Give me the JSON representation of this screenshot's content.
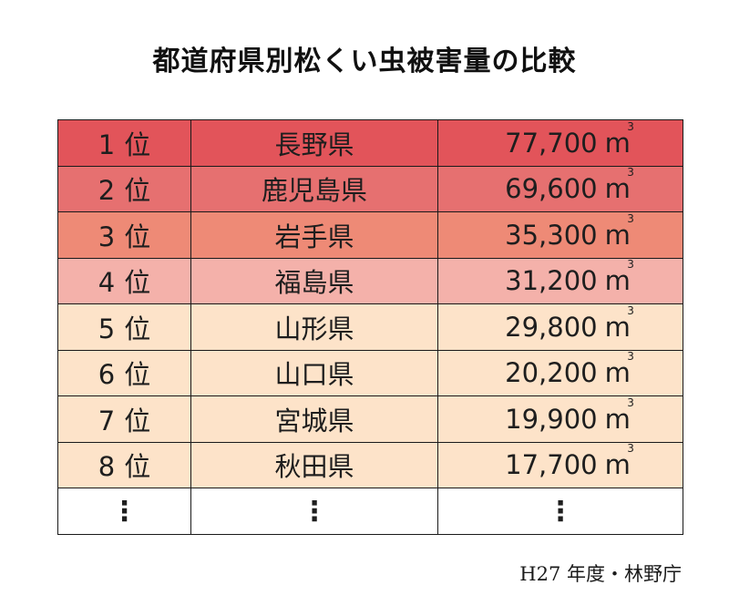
{
  "chart_data": {
    "type": "table",
    "title": "都道府県別松くい虫被害量の比較",
    "rows": [
      {
        "rank": "1",
        "rank_suffix": "位",
        "prefecture": "長野県",
        "volume": "77,700",
        "unit": "m",
        "unit_sup": "3",
        "color": "#e2545a"
      },
      {
        "rank": "2",
        "rank_suffix": "位",
        "prefecture": "鹿児島県",
        "volume": "69,600",
        "unit": "m",
        "unit_sup": "3",
        "color": "#e67070"
      },
      {
        "rank": "3",
        "rank_suffix": "位",
        "prefecture": "岩手県",
        "volume": "35,300",
        "unit": "m",
        "unit_sup": "3",
        "color": "#ee8a76"
      },
      {
        "rank": "4",
        "rank_suffix": "位",
        "prefecture": "福島県",
        "volume": "31,200",
        "unit": "m",
        "unit_sup": "3",
        "color": "#f4b1aa"
      },
      {
        "rank": "5",
        "rank_suffix": "位",
        "prefecture": "山形県",
        "volume": "29,800",
        "unit": "m",
        "unit_sup": "3",
        "color": "#fde3c9"
      },
      {
        "rank": "6",
        "rank_suffix": "位",
        "prefecture": "山口県",
        "volume": "20,200",
        "unit": "m",
        "unit_sup": "3",
        "color": "#fde3c9"
      },
      {
        "rank": "7",
        "rank_suffix": "位",
        "prefecture": "宮城県",
        "volume": "19,900",
        "unit": "m",
        "unit_sup": "3",
        "color": "#fde3c9"
      },
      {
        "rank": "8",
        "rank_suffix": "位",
        "prefecture": "秋田県",
        "volume": "17,700",
        "unit": "m",
        "unit_sup": "3",
        "color": "#fde3c9"
      }
    ],
    "ellipsis_row": {
      "rank": "⋮",
      "prefecture": "⋮",
      "volume": "⋮",
      "color": "#ffffff"
    },
    "source": "H27 年度・林野庁"
  }
}
